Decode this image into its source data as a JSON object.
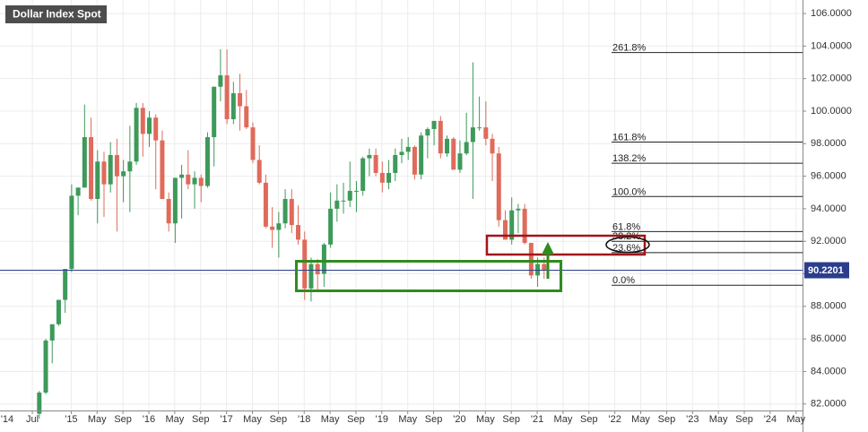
{
  "chart_data": {
    "type": "candlestick",
    "title": "Dollar Index Spot",
    "up_color": "#3d9a5a",
    "down_color": "#df6b5b",
    "grid": true,
    "ylim": [
      81.6,
      106.83
    ],
    "yticks": [
      {
        "value": 82,
        "label": "82.0000"
      },
      {
        "value": 84,
        "label": "84.0000"
      },
      {
        "value": 86,
        "label": "86.0000"
      },
      {
        "value": 88,
        "label": "88.0000"
      },
      {
        "value": 90,
        "label": "90.0000"
      },
      {
        "value": 92,
        "label": "92.0000"
      },
      {
        "value": 94,
        "label": "94.0000"
      },
      {
        "value": 96,
        "label": "96.0000"
      },
      {
        "value": 98,
        "label": "98.0000"
      },
      {
        "value": 100,
        "label": "100.0000"
      },
      {
        "value": 102,
        "label": "102.0000"
      },
      {
        "value": 104,
        "label": "104.0000"
      },
      {
        "value": 106,
        "label": "106.0000"
      }
    ],
    "xlim": [
      "2014-02",
      "2024-06"
    ],
    "xticks": [
      {
        "value": "2014-01",
        "label": "'14"
      },
      {
        "value": "2014-07",
        "label": "Jul"
      },
      {
        "value": "2015-01",
        "label": "'15"
      },
      {
        "value": "2015-05",
        "label": "May"
      },
      {
        "value": "2015-09",
        "label": "Sep"
      },
      {
        "value": "2016-01",
        "label": "'16"
      },
      {
        "value": "2016-05",
        "label": "May"
      },
      {
        "value": "2016-09",
        "label": "Sep"
      },
      {
        "value": "2017-01",
        "label": "'17"
      },
      {
        "value": "2017-05",
        "label": "May"
      },
      {
        "value": "2017-09",
        "label": "Sep"
      },
      {
        "value": "2018-01",
        "label": "'18"
      },
      {
        "value": "2018-05",
        "label": "May"
      },
      {
        "value": "2018-09",
        "label": "Sep"
      },
      {
        "value": "2019-01",
        "label": "'19"
      },
      {
        "value": "2019-05",
        "label": "May"
      },
      {
        "value": "2019-09",
        "label": "Sep"
      },
      {
        "value": "2020-01",
        "label": "'20"
      },
      {
        "value": "2020-05",
        "label": "May"
      },
      {
        "value": "2020-09",
        "label": "Sep"
      },
      {
        "value": "2021-01",
        "label": "'21"
      },
      {
        "value": "2021-05",
        "label": "May"
      },
      {
        "value": "2021-09",
        "label": "Sep"
      },
      {
        "value": "2022-01",
        "label": "'22"
      },
      {
        "value": "2022-05",
        "label": "May"
      },
      {
        "value": "2022-09",
        "label": "Sep"
      },
      {
        "value": "2023-01",
        "label": "'23"
      },
      {
        "value": "2023-05",
        "label": "May"
      },
      {
        "value": "2023-09",
        "label": "Sep"
      },
      {
        "value": "2024-01",
        "label": "'24"
      },
      {
        "value": "2024-05",
        "label": "May"
      }
    ],
    "candles": {
      "x": [
        "2014-08",
        "2014-09",
        "2014-10",
        "2014-11",
        "2014-12",
        "2015-01",
        "2015-02",
        "2015-03",
        "2015-04",
        "2015-05",
        "2015-06",
        "2015-07",
        "2015-08",
        "2015-09",
        "2015-10",
        "2015-11",
        "2015-12",
        "2016-01",
        "2016-02",
        "2016-03",
        "2016-04",
        "2016-05",
        "2016-06",
        "2016-07",
        "2016-08",
        "2016-09",
        "2016-10",
        "2016-11",
        "2016-12",
        "2017-01",
        "2017-02",
        "2017-03",
        "2017-04",
        "2017-05",
        "2017-06",
        "2017-07",
        "2017-08",
        "2017-09",
        "2017-10",
        "2017-11",
        "2017-12",
        "2018-01",
        "2018-02",
        "2018-03",
        "2018-04",
        "2018-05",
        "2018-06",
        "2018-07",
        "2018-08",
        "2018-09",
        "2018-10",
        "2018-11",
        "2018-12",
        "2019-01",
        "2019-02",
        "2019-03",
        "2019-04",
        "2019-05",
        "2019-06",
        "2019-07",
        "2019-08",
        "2019-09",
        "2019-10",
        "2019-11",
        "2019-12",
        "2020-01",
        "2020-02",
        "2020-03",
        "2020-04",
        "2020-05",
        "2020-06",
        "2020-07",
        "2020-08",
        "2020-09",
        "2020-10",
        "2020-11",
        "2020-12",
        "2021-01",
        "2021-02"
      ],
      "open": [
        81.4,
        82.7,
        85.9,
        86.9,
        88.4,
        90.3,
        94.8,
        95.3,
        98.4,
        94.6,
        96.9,
        95.5,
        97.3,
        96.0,
        96.3,
        96.9,
        100.2,
        98.6,
        99.6,
        98.2,
        94.6,
        93.1,
        95.9,
        96.1,
        95.5,
        95.9,
        95.4,
        98.4,
        101.5,
        102.2,
        99.5,
        101.1,
        100.3,
        99.0,
        97.0,
        95.6,
        92.9,
        92.7,
        93.1,
        94.6,
        93.0,
        92.1,
        89.1,
        90.6,
        90.0,
        91.8,
        94.0,
        94.5,
        94.5,
        95.1,
        95.1,
        97.1,
        97.3,
        96.2,
        95.6,
        96.2,
        97.3,
        97.5,
        97.8,
        96.1,
        98.5,
        98.9,
        99.4,
        97.4,
        98.3,
        96.4,
        97.4,
        98.1,
        99.0,
        99.0,
        98.3,
        97.4,
        93.3,
        92.1,
        93.9,
        94.0,
        91.9,
        89.9,
        90.6
      ],
      "high": [
        82.8,
        86.0,
        86.9,
        88.4,
        90.3,
        95.5,
        95.3,
        100.4,
        99.6,
        97.6,
        97.5,
        98.1,
        98.3,
        97.0,
        99.1,
        100.5,
        100.5,
        100.0,
        99.8,
        98.8,
        95.0,
        95.9,
        96.7,
        97.6,
        96.3,
        96.1,
        98.7,
        101.5,
        103.8,
        103.8,
        101.8,
        102.3,
        101.3,
        99.3,
        97.9,
        96.1,
        94.1,
        93.8,
        95.2,
        95.2,
        94.2,
        92.6,
        91.0,
        90.9,
        91.9,
        95.0,
        95.5,
        95.6,
        96.9,
        95.7,
        97.2,
        97.7,
        97.7,
        96.9,
        97.0,
        97.7,
        98.3,
        98.4,
        97.9,
        98.7,
        99.0,
        99.4,
        99.7,
        98.5,
        98.4,
        98.2,
        99.9,
        103.0,
        100.9,
        100.6,
        98.6,
        97.8,
        93.9,
        94.7,
        94.3,
        94.3,
        91.9,
        91.0,
        91.0
      ],
      "low": [
        81.1,
        82.6,
        84.5,
        86.8,
        87.6,
        90.1,
        93.6,
        95.3,
        94.5,
        93.1,
        93.5,
        95.0,
        92.6,
        94.4,
        93.8,
        96.7,
        97.2,
        97.8,
        95.2,
        94.6,
        92.6,
        91.9,
        93.4,
        95.2,
        94.0,
        94.4,
        95.3,
        96.6,
        100.6,
        99.2,
        99.2,
        98.8,
        98.9,
        96.8,
        95.5,
        92.8,
        91.6,
        91.0,
        92.8,
        92.5,
        91.8,
        88.4,
        88.3,
        88.9,
        89.2,
        91.6,
        93.2,
        93.7,
        94.1,
        93.8,
        94.8,
        96.0,
        96.0,
        95.0,
        95.2,
        95.7,
        96.8,
        97.0,
        95.8,
        95.8,
        97.1,
        97.9,
        97.1,
        97.2,
        96.4,
        96.2,
        97.3,
        94.6,
        98.8,
        97.9,
        95.7,
        92.9,
        92.1,
        91.8,
        92.5,
        91.8,
        89.7,
        89.2,
        89.7
      ],
      "close": [
        82.7,
        85.9,
        86.9,
        88.4,
        90.3,
        94.8,
        95.3,
        98.4,
        94.6,
        96.9,
        95.5,
        97.3,
        96.0,
        96.3,
        96.9,
        100.2,
        98.6,
        99.6,
        98.2,
        94.6,
        93.1,
        95.9,
        96.1,
        95.5,
        95.9,
        95.4,
        98.4,
        101.5,
        102.2,
        99.5,
        101.1,
        100.3,
        99.0,
        97.0,
        95.6,
        92.9,
        92.7,
        93.1,
        94.6,
        93.0,
        92.1,
        89.1,
        90.6,
        89.97,
        91.8,
        94.0,
        94.5,
        94.5,
        95.1,
        95.1,
        97.1,
        97.3,
        96.2,
        95.6,
        96.2,
        97.3,
        97.5,
        97.8,
        96.1,
        98.5,
        98.9,
        99.4,
        97.4,
        98.3,
        96.4,
        97.4,
        98.1,
        99.0,
        99.0,
        98.3,
        97.4,
        93.3,
        92.1,
        93.9,
        94.0,
        91.9,
        89.9,
        90.6,
        90.2201
      ]
    },
    "fib_levels": [
      {
        "value": 103.6,
        "label": "261.8%"
      },
      {
        "value": 98.1,
        "label": "161.8%"
      },
      {
        "value": 96.8,
        "label": "138.2%"
      },
      {
        "value": 94.75,
        "label": "100.0%"
      },
      {
        "value": 92.6,
        "label": "61.8%"
      },
      {
        "value": 92.0,
        "label": "38.2%"
      },
      {
        "value": 91.3,
        "label": "23.6%"
      },
      {
        "value": 89.3,
        "label": "0.0%"
      }
    ],
    "last_price": {
      "value": 90.2201,
      "label": "90.2201",
      "color": "#2b3d8c"
    }
  }
}
